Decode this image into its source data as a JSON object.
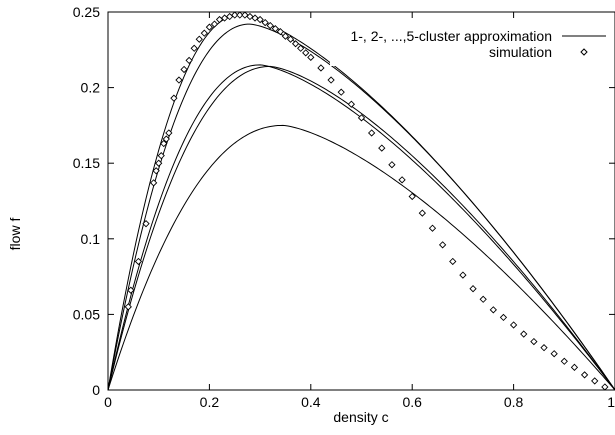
{
  "chart_data": {
    "type": "line",
    "title": "",
    "xlabel": "density c",
    "ylabel": "flow f",
    "xlim": [
      0,
      1
    ],
    "ylim": [
      0,
      0.25
    ],
    "x_ticks": [
      "0",
      "0.2",
      "0.4",
      "0.6",
      "0.8",
      "1"
    ],
    "y_ticks": [
      "0",
      "0.05",
      "0.1",
      "0.15",
      "0.2",
      "0.25"
    ],
    "grid": false,
    "legend_position": "top-right",
    "legend": [
      {
        "label": "1-, 2-, ...,5-cluster approximation",
        "style": "line"
      },
      {
        "label": "simulation",
        "style": "diamond"
      }
    ],
    "series": [
      {
        "style": "line",
        "peak_x": 0.345,
        "peak_y": 0.175
      },
      {
        "style": "line",
        "peak_x": 0.32,
        "peak_y": 0.214
      },
      {
        "style": "line",
        "peak_x": 0.3,
        "peak_y": 0.215
      },
      {
        "style": "line",
        "peak_x": 0.28,
        "peak_y": 0.242
      },
      {
        "style": "line",
        "peak_x": 0.26,
        "peak_y": 0.248
      },
      {
        "name": "simulation",
        "style": "points",
        "x": [
          0.04,
          0.045,
          0.06,
          0.075,
          0.09,
          0.095,
          0.1,
          0.105,
          0.11,
          0.115,
          0.12,
          0.13,
          0.14,
          0.15,
          0.16,
          0.17,
          0.18,
          0.19,
          0.2,
          0.21,
          0.22,
          0.23,
          0.24,
          0.25,
          0.26,
          0.27,
          0.28,
          0.29,
          0.3,
          0.31,
          0.32,
          0.33,
          0.34,
          0.35,
          0.36,
          0.37,
          0.38,
          0.39,
          0.4,
          0.42,
          0.44,
          0.46,
          0.48,
          0.5,
          0.52,
          0.54,
          0.56,
          0.58,
          0.6,
          0.62,
          0.64,
          0.66,
          0.68,
          0.7,
          0.72,
          0.74,
          0.76,
          0.78,
          0.8,
          0.82,
          0.84,
          0.86,
          0.88,
          0.9,
          0.92,
          0.94,
          0.96,
          0.98
        ],
        "y": [
          0.055,
          0.066,
          0.085,
          0.11,
          0.137,
          0.145,
          0.15,
          0.155,
          0.163,
          0.166,
          0.17,
          0.193,
          0.205,
          0.212,
          0.218,
          0.226,
          0.232,
          0.236,
          0.24,
          0.242,
          0.245,
          0.246,
          0.247,
          0.248,
          0.248,
          0.248,
          0.247,
          0.246,
          0.245,
          0.243,
          0.241,
          0.239,
          0.237,
          0.234,
          0.232,
          0.229,
          0.226,
          0.223,
          0.22,
          0.213,
          0.205,
          0.197,
          0.189,
          0.18,
          0.17,
          0.16,
          0.149,
          0.139,
          0.128,
          0.117,
          0.107,
          0.096,
          0.085,
          0.076,
          0.067,
          0.06,
          0.053,
          0.048,
          0.043,
          0.037,
          0.032,
          0.028,
          0.024,
          0.019,
          0.015,
          0.01,
          0.006,
          0.002
        ]
      }
    ]
  }
}
